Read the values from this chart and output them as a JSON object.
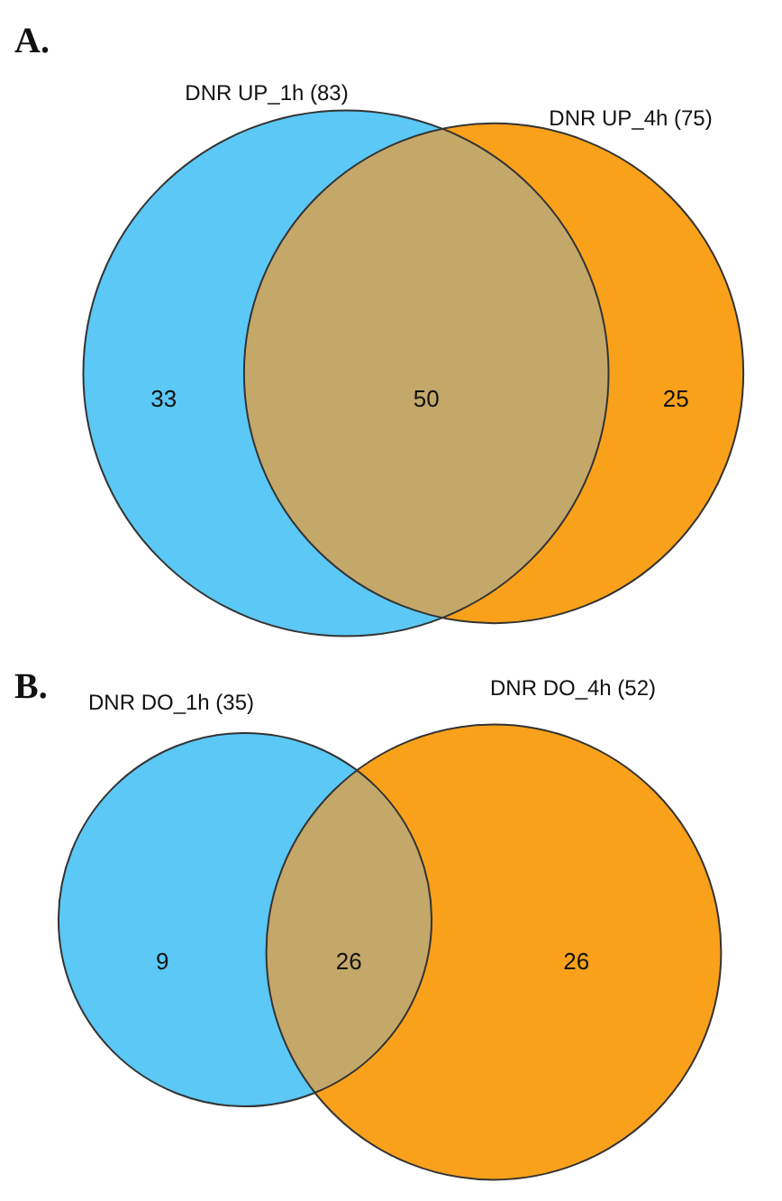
{
  "chart_data": [
    {
      "type": "other",
      "title": "A.",
      "categories": [
        null,
        null,
        null
      ],
      "values": [
        33,
        50,
        25
      ],
      "data_labels": true,
      "colors": [
        "#5bc8f5",
        "#c4a86a",
        "#f9a11b"
      ],
      "annotations": [
        "DNR UP_1h (83)",
        "DNR UP_4h (75)"
      ]
    },
    {
      "type": "other",
      "title": "B.",
      "categories": [
        null,
        null,
        null
      ],
      "values": [
        9,
        26,
        26
      ],
      "data_labels": true,
      "colors": [
        "#5bc8f5",
        "#c4a86a",
        "#f9a11b"
      ],
      "annotations": [
        "DNR DO_1h (35)",
        "DNR DO_4h (52)"
      ]
    }
  ]
}
